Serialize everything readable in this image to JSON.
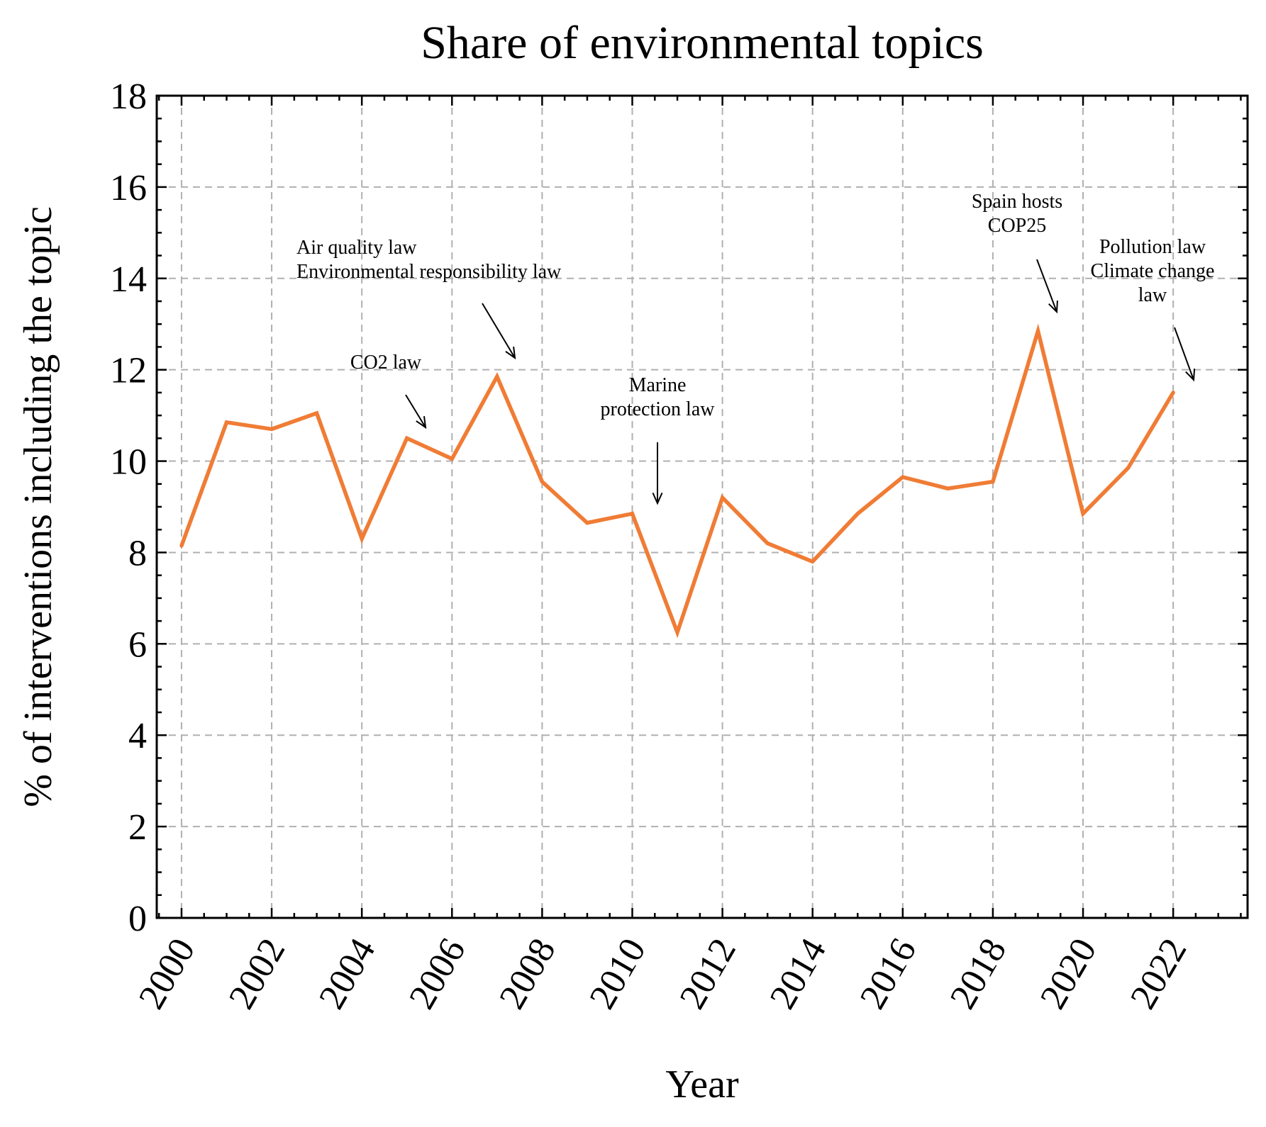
{
  "chart_data": {
    "type": "line",
    "title": "Share of environmental topics",
    "xlabel": "Year",
    "ylabel": "% of interventions including the topic",
    "xlim": [
      1999.45,
      2023.65
    ],
    "ylim": [
      0,
      18
    ],
    "xticks": [
      "2000",
      "2002",
      "2004",
      "2006",
      "2008",
      "2010",
      "2012",
      "2014",
      "2016",
      "2018",
      "2020",
      "2022"
    ],
    "yticks": [
      "0",
      "2",
      "4",
      "6",
      "8",
      "10",
      "12",
      "14",
      "16",
      "18"
    ],
    "grid": true,
    "color": "#f07c35",
    "x": [
      2000,
      2001,
      2002,
      2003,
      2004,
      2005,
      2006,
      2007,
      2008,
      2009,
      2010,
      2011,
      2012,
      2013,
      2014,
      2015,
      2016,
      2017,
      2018,
      2019,
      2020,
      2021,
      2022
    ],
    "y": [
      8.15,
      10.85,
      10.7,
      11.05,
      8.3,
      10.5,
      10.05,
      11.85,
      9.55,
      8.65,
      8.85,
      6.25,
      9.2,
      8.2,
      7.8,
      8.85,
      9.65,
      9.4,
      9.55,
      12.85,
      8.85,
      9.85,
      11.5
    ],
    "annotations": [
      {
        "lines": [
          "CO2 law"
        ],
        "x": 2005
      },
      {
        "lines": [
          "Air quality law",
          "Environmental responsibility law"
        ],
        "x": 2007
      },
      {
        "lines": [
          "Marine",
          "protection law"
        ],
        "x": 2010
      },
      {
        "lines": [
          "Spain hosts",
          "COP25"
        ],
        "x": 2019
      },
      {
        "lines": [
          "Pollution law",
          "Climate change",
          "law"
        ],
        "x": 2022
      }
    ]
  }
}
